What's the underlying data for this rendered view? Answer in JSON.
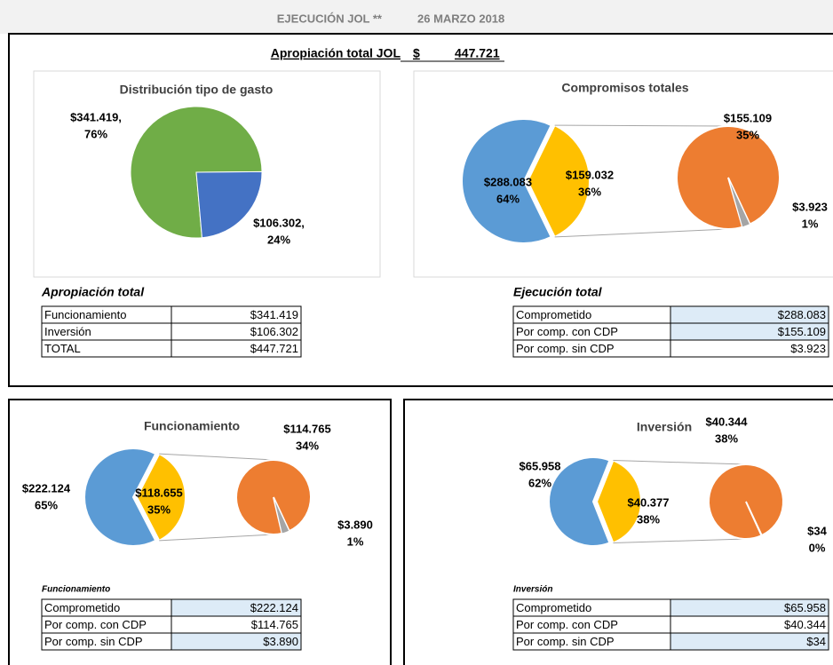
{
  "header": {
    "title": "EJECUCIÓN JOL **",
    "date": "26 MARZO 2018",
    "total_label": "Apropiación total JOL",
    "total_currency": "$",
    "total_value": "447.721"
  },
  "chart_data": [
    {
      "type": "pie",
      "title": "Distribución tipo de gasto",
      "values": [
        341419,
        106302
      ],
      "value_labels": [
        "$341.419,",
        "$106.302,"
      ],
      "percent_labels": [
        "76%",
        "24%"
      ],
      "colors": [
        "#70ad47",
        "#4472c4"
      ]
    },
    {
      "type": "pie_of_pie",
      "title": "Compromisos totales",
      "values": [
        288083,
        155109,
        3923
      ],
      "value_labels": [
        "$288.083",
        "$155.109",
        "$3.923"
      ],
      "percent_labels": [
        "64%",
        "35%",
        "1%"
      ],
      "other_value": 159032,
      "other_value_label": "$159.032",
      "other_percent_label": "36%",
      "colors": [
        "#5b9bd5",
        "#ed7d31",
        "#a5a5a5"
      ],
      "other_color": "#ffc000"
    },
    {
      "type": "pie_of_pie",
      "title": "Funcionamiento",
      "values": [
        222124,
        114765,
        3890
      ],
      "value_labels": [
        "$222.124",
        "$114.765",
        "$3.890"
      ],
      "percent_labels": [
        "65%",
        "34%",
        "1%"
      ],
      "other_value": 118655,
      "other_value_label": "$118.655",
      "other_percent_label": "35%",
      "colors": [
        "#5b9bd5",
        "#ed7d31",
        "#a5a5a5"
      ],
      "other_color": "#ffc000"
    },
    {
      "type": "pie_of_pie",
      "title": "Inversión",
      "values": [
        65958,
        40344,
        34
      ],
      "value_labels": [
        "$65.958",
        "$40.344",
        "$34"
      ],
      "percent_labels": [
        "62%",
        "38%",
        "0%"
      ],
      "other_value": 40377,
      "other_value_label": "$40.377",
      "other_percent_label": "38%",
      "colors": [
        "#5b9bd5",
        "#ed7d31",
        "#a5a5a5"
      ],
      "other_color": "#ffc000"
    }
  ],
  "tables": [
    {
      "title": "Apropiación total",
      "rows": [
        [
          "Funcionamiento",
          "$341.419"
        ],
        [
          "Inversión",
          "$106.302"
        ],
        [
          "TOTAL",
          "$447.721"
        ]
      ],
      "shaded_rows": []
    },
    {
      "title": "Ejecución total",
      "rows": [
        [
          "Comprometido",
          "$288.083"
        ],
        [
          "Por comp. con CDP",
          "$155.109"
        ],
        [
          "Por comp. sin CDP",
          "$3.923"
        ]
      ],
      "shaded_rows": [
        0,
        1
      ]
    },
    {
      "title": "Funcionamiento",
      "rows": [
        [
          "Comprometido",
          "$222.124"
        ],
        [
          "Por comp. con CDP",
          "$114.765"
        ],
        [
          "Por comp. sin CDP",
          "$3.890"
        ]
      ],
      "shaded_rows": [
        0,
        2
      ]
    },
    {
      "title": "Inversión",
      "rows": [
        [
          "Comprometido",
          "$65.958"
        ],
        [
          "Por comp. con CDP",
          "$40.344"
        ],
        [
          "Por comp. sin CDP",
          "$34"
        ]
      ],
      "shaded_rows": [
        0,
        2
      ]
    }
  ]
}
